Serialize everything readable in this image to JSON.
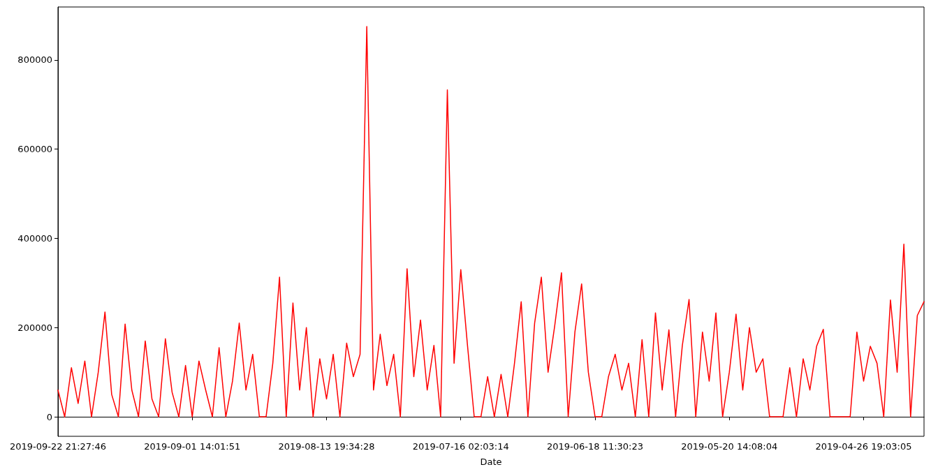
{
  "chart_data": {
    "type": "line",
    "xlabel": "Date",
    "categories": [
      "2019-09-22 21:27:46",
      null,
      null,
      null,
      null,
      null,
      null,
      null,
      null,
      null,
      null,
      null,
      null,
      null,
      null,
      null,
      null,
      null,
      null,
      null,
      "2019-09-01 14:01:51",
      null,
      null,
      null,
      null,
      null,
      null,
      null,
      null,
      null,
      null,
      null,
      null,
      null,
      null,
      null,
      null,
      null,
      null,
      null,
      "2019-08-13 19:34:28",
      null,
      null,
      null,
      null,
      null,
      null,
      null,
      null,
      null,
      null,
      null,
      null,
      null,
      null,
      null,
      null,
      null,
      null,
      null,
      "2019-07-16 02:03:14",
      null,
      null,
      null,
      null,
      null,
      null,
      null,
      null,
      null,
      null,
      null,
      null,
      null,
      null,
      null,
      null,
      null,
      null,
      null,
      "2019-06-18 11:30:23",
      null,
      null,
      null,
      null,
      null,
      null,
      null,
      null,
      null,
      null,
      null,
      null,
      null,
      null,
      null,
      null,
      null,
      null,
      null,
      "2019-05-20 14:08:04",
      null,
      null,
      null,
      null,
      null,
      null,
      null,
      null,
      null,
      null,
      null,
      null,
      null,
      null,
      null,
      null,
      null,
      null,
      null,
      "2019-04-26 19:03:05",
      null,
      null,
      null,
      null,
      null,
      null,
      null,
      null,
      null
    ],
    "series": [
      {
        "color": "#ff0000",
        "values": [
          60000,
          0,
          110000,
          30000,
          125000,
          0,
          100000,
          235000,
          50000,
          0,
          208000,
          60000,
          0,
          170000,
          40000,
          0,
          175000,
          55000,
          0,
          115000,
          0,
          125000,
          60000,
          0,
          155000,
          0,
          80000,
          210000,
          60000,
          140000,
          0,
          0,
          120000,
          313000,
          0,
          255000,
          60000,
          200000,
          0,
          130000,
          40000,
          140000,
          0,
          165000,
          90000,
          140000,
          875000,
          60000,
          185000,
          70000,
          140000,
          0,
          332000,
          90000,
          217000,
          60000,
          160000,
          0,
          733000,
          120000,
          330000,
          160000,
          0,
          0,
          90000,
          0,
          95000,
          0,
          120000,
          258000,
          0,
          210000,
          313000,
          100000,
          205000,
          323000,
          0,
          190000,
          298000,
          100000,
          0,
          0,
          90000,
          140000,
          60000,
          120000,
          0,
          173000,
          0,
          233000,
          60000,
          195000,
          0,
          160000,
          263000,
          0,
          190000,
          80000,
          233000,
          0,
          100000,
          230000,
          60000,
          200000,
          100000,
          130000,
          0,
          0,
          0,
          110000,
          0,
          130000,
          60000,
          158000,
          196000,
          0,
          0,
          0,
          0,
          190000,
          80000,
          158000,
          120000,
          0,
          262000,
          100000,
          387000,
          0,
          227000,
          258000
        ]
      }
    ],
    "ylim": [
      -43750,
      918750
    ],
    "yticks": [
      0,
      200000,
      400000,
      600000,
      800000
    ],
    "marker": "none",
    "line_style": "solid"
  }
}
